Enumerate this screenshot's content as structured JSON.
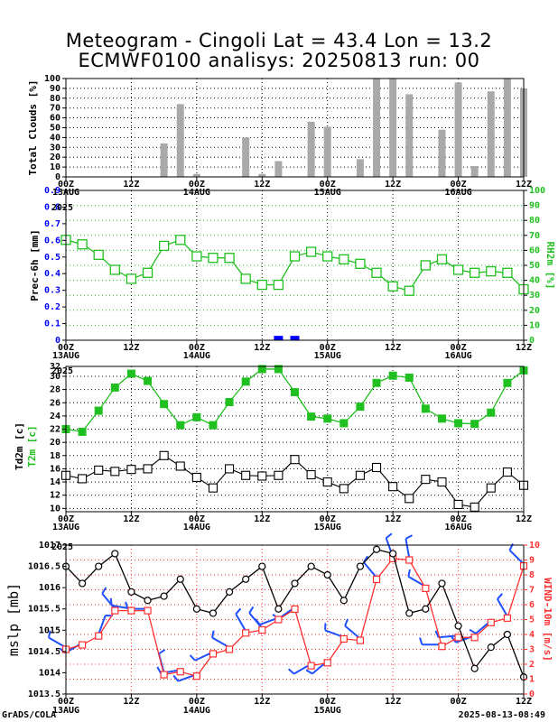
{
  "title": {
    "line1": "Meteogram - Cingoli Lat = 43.4 Lon = 13.2",
    "line2": "ECMWF0100 analisys: 20250813 run: 00"
  },
  "footer": {
    "left": "GrADS/COLA",
    "right": "2025-08-13-08:49"
  },
  "time_axis": {
    "tick_labels": [
      "00Z",
      "12Z",
      "00Z",
      "12Z",
      "00Z",
      "12Z",
      "00Z",
      "12Z"
    ],
    "date_labels": [
      "13AUG",
      "14AUG",
      "15AUG",
      "16AUG"
    ],
    "year_label": "2025"
  },
  "colors": {
    "grid": "#000000",
    "clouds_bar": "#a9a9a9",
    "humidity": "#20c020",
    "precip": "#0000ff",
    "t2m": "#20c020",
    "td2m": "#000000",
    "mslp": "#000000",
    "wind": "#ff3030",
    "wind_barb": "#1f4fff"
  },
  "chart_data": [
    {
      "type": "bar",
      "ylabel": "Total Clouds [%]",
      "ylim": [
        0,
        100
      ],
      "yticks": [
        0,
        10,
        20,
        30,
        40,
        50,
        60,
        70,
        80,
        90,
        100
      ],
      "x_hours": [
        3,
        6,
        9,
        12,
        15,
        18,
        21,
        24,
        27,
        30,
        33,
        36,
        39,
        42,
        45,
        48,
        51,
        54,
        57,
        60,
        63,
        66,
        69,
        72,
        75,
        78,
        81,
        84
      ],
      "values": [
        0,
        0,
        0,
        0,
        0,
        34,
        74,
        3,
        0,
        0,
        40,
        3,
        16,
        0,
        56,
        51,
        0,
        18,
        100,
        100,
        84,
        0,
        48,
        96,
        11,
        87,
        100,
        90
      ],
      "grid": true
    },
    {
      "type": "line",
      "ylabel_left": "Prec-6h [mm]",
      "ylabel_right": "RH2m [%]",
      "left_ylim": [
        0,
        0.9
      ],
      "left_yticks": [
        "0",
        "0.1",
        "0.2",
        "0.3",
        "0.4",
        "0.5",
        "0.6",
        "0.7",
        "0.8",
        "0.9"
      ],
      "right_ylim": [
        0,
        100
      ],
      "right_yticks": [
        0,
        10,
        20,
        30,
        40,
        50,
        60,
        70,
        80,
        90,
        100
      ],
      "rh2m": {
        "name": "RH2m [%]",
        "x_hours": [
          0,
          3,
          6,
          9,
          12,
          15,
          18,
          21,
          24,
          27,
          30,
          33,
          36,
          39,
          42,
          45,
          48,
          51,
          54,
          57,
          60,
          63,
          66,
          69,
          72,
          75,
          78,
          81,
          84
        ],
        "values": [
          67,
          64,
          57,
          47,
          41,
          45,
          63,
          67,
          56,
          55,
          55,
          41,
          37,
          37,
          56,
          59,
          56,
          54,
          51,
          45,
          36,
          33,
          50,
          54,
          47,
          45,
          46,
          45,
          34
        ]
      },
      "precip": {
        "name": "Prec-6h [mm]",
        "x_hours": [
          39,
          42
        ],
        "values": [
          0.01,
          0.01
        ]
      },
      "grid": true
    },
    {
      "type": "line",
      "ylabel": "Td2m [c] T2m [c]",
      "ylim": [
        9.5,
        31.5
      ],
      "yticks": [
        10,
        12,
        14,
        16,
        18,
        20,
        22,
        24,
        26,
        28,
        30
      ],
      "top_tick_label": "32",
      "series": [
        {
          "name": "T2m [c]",
          "x_hours": [
            0,
            3,
            6,
            9,
            12,
            15,
            18,
            21,
            24,
            27,
            30,
            33,
            36,
            39,
            42,
            45,
            48,
            51,
            54,
            57,
            60,
            63,
            66,
            69,
            72,
            75,
            78,
            81,
            84
          ],
          "values": [
            22,
            21.6,
            24.8,
            28.3,
            30.4,
            29.3,
            25.8,
            22.6,
            23.8,
            22.6,
            26.1,
            29.2,
            31.1,
            31.1,
            27.6,
            23.9,
            23.6,
            22.9,
            25.4,
            29,
            30.1,
            29.8,
            25.1,
            23.6,
            22.9,
            22.8,
            24.5,
            29,
            30.9
          ]
        },
        {
          "name": "Td2m [c]",
          "x_hours": [
            0,
            3,
            6,
            9,
            12,
            15,
            18,
            21,
            24,
            27,
            30,
            33,
            36,
            39,
            42,
            45,
            48,
            51,
            54,
            57,
            60,
            63,
            66,
            69,
            72,
            75,
            78,
            81,
            84
          ],
          "values": [
            15,
            14.5,
            15.8,
            15.6,
            15.9,
            16,
            18,
            16.4,
            14.7,
            13.1,
            16,
            15,
            14.9,
            15,
            17.4,
            15.1,
            14,
            13,
            15,
            16.2,
            13.3,
            11.5,
            14.4,
            14,
            10.6,
            10.2,
            13.1,
            15.5,
            13.5
          ]
        }
      ],
      "grid": true
    },
    {
      "type": "line",
      "ylabel_left": "mslp [mb]",
      "ylabel_right": "WIND-10m [m/s]",
      "left_ylim": [
        1013.5,
        1017
      ],
      "left_yticks": [
        "1013.5",
        "1014",
        "1014.5",
        "1015",
        "1015.5",
        "1016",
        "1016.5",
        "1017"
      ],
      "right_ylim": [
        0,
        10
      ],
      "right_yticks": [
        0,
        1,
        2,
        3,
        4,
        5,
        6,
        7,
        8,
        9,
        10
      ],
      "series": [
        {
          "name": "mslp [mb]",
          "x_hours": [
            0,
            3,
            6,
            9,
            12,
            15,
            18,
            21,
            24,
            27,
            30,
            33,
            36,
            39,
            42,
            45,
            48,
            51,
            54,
            57,
            60,
            63,
            66,
            69,
            72,
            75,
            78,
            81,
            84
          ],
          "values": [
            1016.5,
            1016.1,
            1016.5,
            1016.8,
            1015.9,
            1015.7,
            1015.8,
            1016.2,
            1015.5,
            1015.4,
            1015.9,
            1016.2,
            1016.5,
            1015.5,
            1016.1,
            1016.5,
            1016.3,
            1015.7,
            1016.5,
            1016.9,
            1016.8,
            1015.4,
            1015.5,
            1016.1,
            1015.1,
            1014.1,
            1014.6,
            1014.9,
            1013.9
          ]
        },
        {
          "name": "WIND-10m [m/s]",
          "x_hours": [
            0,
            3,
            6,
            9,
            12,
            15,
            18,
            21,
            24,
            27,
            30,
            33,
            36,
            39,
            42,
            45,
            48,
            51,
            54,
            57,
            60,
            63,
            66,
            69,
            72,
            75,
            78,
            81,
            84
          ],
          "values": [
            3,
            3.3,
            3.9,
            5.6,
            5.6,
            5.6,
            1.3,
            1.5,
            1.2,
            2.7,
            3,
            4.1,
            4.3,
            5,
            5.7,
            1.9,
            2.1,
            3.7,
            3.6,
            7.7,
            9.1,
            9,
            7.1,
            3.2,
            3.8,
            3.8,
            4.8,
            5.1,
            8.6
          ]
        }
      ],
      "wind_barbs_x_hours": [
        0,
        3,
        6,
        9,
        12,
        15,
        18,
        21,
        24,
        27,
        30,
        33,
        36,
        39,
        42,
        45,
        48,
        51,
        54,
        57,
        60,
        63,
        66,
        69,
        72,
        75,
        78,
        81,
        84
      ],
      "grid": true
    }
  ]
}
